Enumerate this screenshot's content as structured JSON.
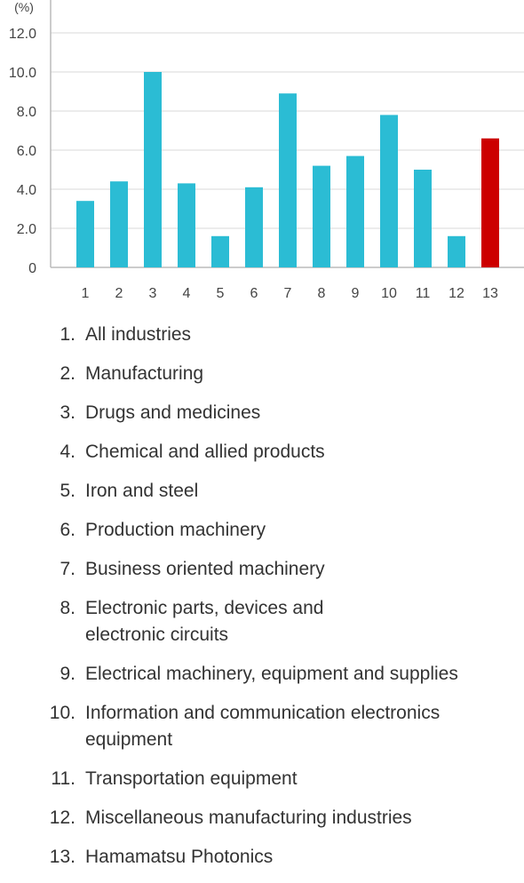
{
  "chart_data": {
    "type": "bar",
    "unit_label": "(%)",
    "categories": [
      "1",
      "2",
      "3",
      "4",
      "5",
      "6",
      "7",
      "8",
      "9",
      "10",
      "11",
      "12",
      "13"
    ],
    "values": [
      3.4,
      4.4,
      10.0,
      4.3,
      1.6,
      4.1,
      8.9,
      5.2,
      5.7,
      7.8,
      5.0,
      1.6,
      6.6
    ],
    "bar_colors": [
      "#2bbcd4",
      "#2bbcd4",
      "#2bbcd4",
      "#2bbcd4",
      "#2bbcd4",
      "#2bbcd4",
      "#2bbcd4",
      "#2bbcd4",
      "#2bbcd4",
      "#2bbcd4",
      "#2bbcd4",
      "#2bbcd4",
      "#cc0000"
    ],
    "ylim": [
      0,
      12.0
    ],
    "yticks": [
      "0",
      "2.0",
      "4.0",
      "6.0",
      "8.0",
      "10.0",
      "12.0"
    ],
    "grid": true,
    "title": "",
    "xlabel": "",
    "ylabel": ""
  },
  "legend": {
    "items": [
      {
        "num": "1.",
        "label": "All industries"
      },
      {
        "num": "2.",
        "label": "Manufacturing"
      },
      {
        "num": "3.",
        "label": "Drugs and medicines"
      },
      {
        "num": "4.",
        "label": "Chemical and allied products"
      },
      {
        "num": "5.",
        "label": "Iron and steel"
      },
      {
        "num": "6.",
        "label": "Production machinery"
      },
      {
        "num": "7.",
        "label": "Business oriented machinery"
      },
      {
        "num": "8.",
        "label": "Electronic parts, devices and\nelectronic circuits"
      },
      {
        "num": "9.",
        "label": "Electrical machinery, equipment and supplies"
      },
      {
        "num": "10.",
        "label": "Information and communication electronics\nequipment"
      },
      {
        "num": "11.",
        "label": "Transportation equipment"
      },
      {
        "num": "12.",
        "label": "Miscellaneous manufacturing industries"
      },
      {
        "num": "13.",
        "label": "Hamamatsu Photonics"
      }
    ]
  }
}
